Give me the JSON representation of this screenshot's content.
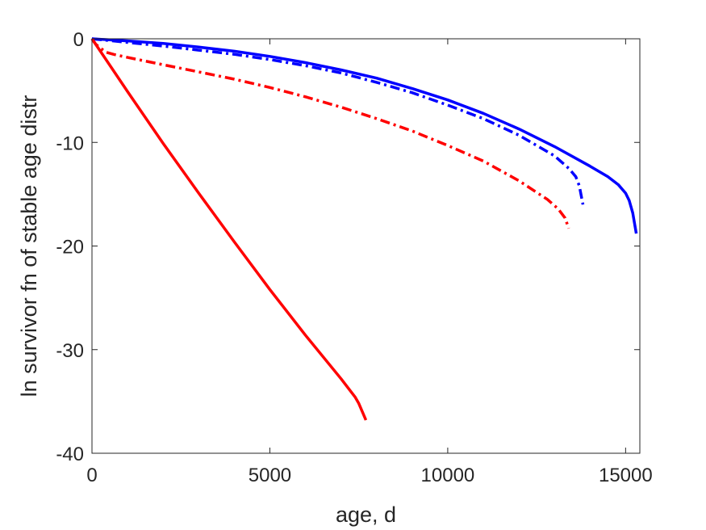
{
  "chart_data": {
    "type": "line",
    "title": "",
    "xlabel": "age, d",
    "ylabel": "ln survivor fn of stable age distr",
    "xlim": [
      0,
      15400
    ],
    "ylim": [
      -40,
      0
    ],
    "xticks": [
      0,
      5000,
      10000,
      15000
    ],
    "yticks": [
      0,
      -10,
      -20,
      -30,
      -40
    ],
    "xtick_labels": [
      "0",
      "5000",
      "10000",
      "15000"
    ],
    "ytick_labels": [
      "0",
      "-10",
      "-20",
      "-30",
      "-40"
    ],
    "grid": false,
    "legend": null,
    "series": [
      {
        "color": "#0000ff",
        "style": "solid",
        "x": [
          0,
          1000,
          2000,
          3000,
          4000,
          5000,
          6000,
          7000,
          8000,
          9000,
          10000,
          11000,
          12000,
          13000,
          14000,
          14500,
          14800,
          15000,
          15100,
          15200,
          15250,
          15300
        ],
        "y": [
          0,
          -0.2,
          -0.45,
          -0.8,
          -1.2,
          -1.7,
          -2.3,
          -3.0,
          -3.8,
          -4.8,
          -5.9,
          -7.2,
          -8.7,
          -10.4,
          -12.3,
          -13.3,
          -14.1,
          -14.9,
          -15.6,
          -16.8,
          -17.8,
          -18.8
        ]
      },
      {
        "color": "#0000ff",
        "style": "dashdot",
        "x": [
          0,
          1000,
          2000,
          3000,
          4000,
          5000,
          6000,
          7000,
          8000,
          9000,
          10000,
          11000,
          12000,
          13000,
          13400,
          13600,
          13700,
          13800
        ],
        "y": [
          0,
          -0.35,
          -0.7,
          -1.1,
          -1.5,
          -2.0,
          -2.6,
          -3.3,
          -4.2,
          -5.2,
          -6.4,
          -7.7,
          -9.3,
          -11.3,
          -12.5,
          -13.3,
          -14.2,
          -16.0
        ]
      },
      {
        "color": "#ff0000",
        "style": "dashdot",
        "x": [
          0,
          100,
          200,
          400,
          600,
          1000,
          2000,
          3000,
          4000,
          5000,
          6000,
          7000,
          8000,
          9000,
          10000,
          11000,
          12000,
          12800,
          13100,
          13300,
          13400
        ],
        "y": [
          0,
          -0.5,
          -0.8,
          -1.3,
          -1.5,
          -1.8,
          -2.5,
          -3.2,
          -3.9,
          -4.7,
          -5.6,
          -6.6,
          -7.7,
          -8.9,
          -10.3,
          -11.8,
          -13.7,
          -15.5,
          -16.4,
          -17.3,
          -18.3
        ]
      },
      {
        "color": "#ff0000",
        "style": "solid",
        "x": [
          0,
          1000,
          2000,
          3000,
          4000,
          5000,
          6000,
          7000,
          7400,
          7500,
          7550,
          7600,
          7650,
          7700
        ],
        "y": [
          0,
          -5.1,
          -10.1,
          -14.9,
          -19.6,
          -24.2,
          -28.6,
          -32.8,
          -34.6,
          -35.2,
          -35.6,
          -36.0,
          -36.4,
          -36.8
        ]
      }
    ]
  }
}
